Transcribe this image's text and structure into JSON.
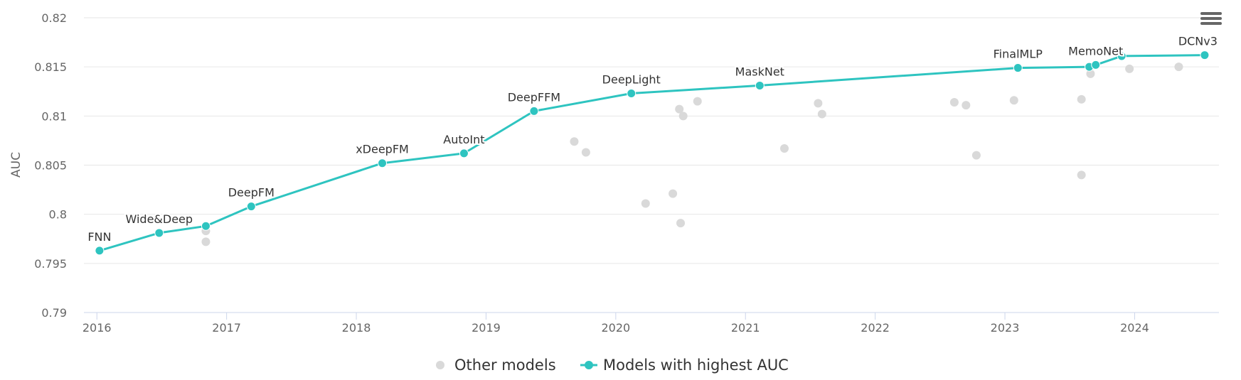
{
  "chart_data": {
    "type": "scatter",
    "title": "",
    "xlabel": "",
    "ylabel": "AUC",
    "xlim": [
      2015.9,
      2024.65
    ],
    "ylim": [
      0.79,
      0.82
    ],
    "x_ticks": [
      2016,
      2017,
      2018,
      2019,
      2020,
      2021,
      2022,
      2023,
      2024
    ],
    "y_ticks": [
      0.79,
      0.795,
      0.8,
      0.805,
      0.81,
      0.815,
      0.82
    ],
    "y_tick_labels": [
      "0.79",
      "0.795",
      "0.8",
      "0.805",
      "0.81",
      "0.815",
      "0.82"
    ],
    "grid": true,
    "legend_position": "bottom-center",
    "series": [
      {
        "name": "Other models",
        "color": "#d9d9d9",
        "marker": "circle",
        "points": [
          {
            "x": 2016.84,
            "y": 0.7983
          },
          {
            "x": 2016.84,
            "y": 0.7972
          },
          {
            "x": 2019.68,
            "y": 0.8074
          },
          {
            "x": 2019.77,
            "y": 0.8063
          },
          {
            "x": 2020.23,
            "y": 0.8011
          },
          {
            "x": 2020.44,
            "y": 0.8021
          },
          {
            "x": 2020.49,
            "y": 0.8107
          },
          {
            "x": 2020.5,
            "y": 0.7991
          },
          {
            "x": 2020.52,
            "y": 0.81
          },
          {
            "x": 2020.63,
            "y": 0.8115
          },
          {
            "x": 2021.3,
            "y": 0.8067
          },
          {
            "x": 2021.56,
            "y": 0.8113
          },
          {
            "x": 2021.59,
            "y": 0.8102
          },
          {
            "x": 2022.61,
            "y": 0.8114
          },
          {
            "x": 2022.7,
            "y": 0.8111
          },
          {
            "x": 2022.78,
            "y": 0.806
          },
          {
            "x": 2023.07,
            "y": 0.8116
          },
          {
            "x": 2023.59,
            "y": 0.8117
          },
          {
            "x": 2023.59,
            "y": 0.804
          },
          {
            "x": 2023.66,
            "y": 0.8143
          },
          {
            "x": 2023.96,
            "y": 0.8148
          },
          {
            "x": 2024.34,
            "y": 0.815
          }
        ]
      },
      {
        "name": "Models with highest AUC",
        "color": "#2ec4c0",
        "marker": "circle",
        "line": true,
        "points": [
          {
            "x": 2016.02,
            "y": 0.7963,
            "label": "FNN"
          },
          {
            "x": 2016.48,
            "y": 0.7981,
            "label": "Wide&Deep"
          },
          {
            "x": 2016.84,
            "y": 0.7988,
            "label": ""
          },
          {
            "x": 2017.19,
            "y": 0.8008,
            "label": "DeepFM"
          },
          {
            "x": 2018.2,
            "y": 0.8052,
            "label": "xDeepFM"
          },
          {
            "x": 2018.83,
            "y": 0.8062,
            "label": "AutoInt"
          },
          {
            "x": 2019.37,
            "y": 0.8105,
            "label": "DeepFFM"
          },
          {
            "x": 2020.12,
            "y": 0.8123,
            "label": "DeepLight"
          },
          {
            "x": 2021.11,
            "y": 0.8131,
            "label": "MaskNet"
          },
          {
            "x": 2023.1,
            "y": 0.8149,
            "label": "FinalMLP"
          },
          {
            "x": 2023.65,
            "y": 0.815,
            "label": ""
          },
          {
            "x": 2023.7,
            "y": 0.8152,
            "label": "MemoNet"
          },
          {
            "x": 2023.9,
            "y": 0.8161,
            "label": ""
          },
          {
            "x": 2024.54,
            "y": 0.8162,
            "label": "DCNv3"
          }
        ]
      }
    ]
  },
  "menu": {
    "icon": "hamburger-menu-icon"
  }
}
